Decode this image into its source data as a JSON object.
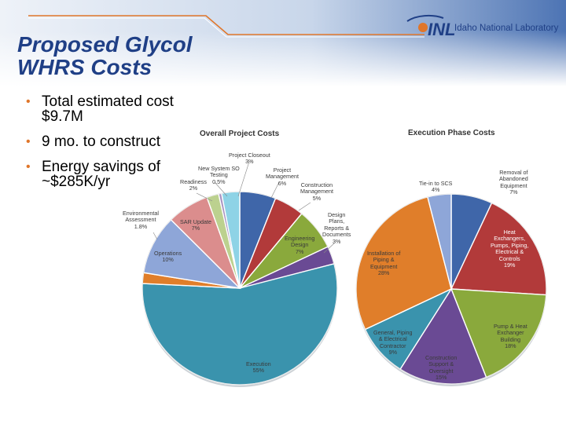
{
  "slide": {
    "title_line1": "Proposed Glycol",
    "title_line2": "WHRS Costs",
    "logo_text": "Idaho National Laboratory",
    "logo_mark": "INL",
    "bullets": [
      "Total estimated cost\n$9.7M",
      "9 mo. to construct",
      "Energy savings  of\n~$285K/yr"
    ]
  },
  "colors": {
    "title": "#1f3f86",
    "bullet": "#e0762a",
    "accent_line": "#e0762a"
  },
  "chart_data": [
    {
      "type": "pie",
      "title": "Overall Project Costs",
      "slices": [
        {
          "name": "Project\nManagement",
          "pct_label": "6%",
          "value": 6,
          "color": "#3f66a9"
        },
        {
          "name": "Construction\nManagement",
          "pct_label": "5%",
          "value": 5,
          "color": "#b23a3a"
        },
        {
          "name": "Engineering\nDesign",
          "pct_label": "7%",
          "value": 7,
          "color": "#8aa93c"
        },
        {
          "name": "Design\nPlans,\nReports &\nDocuments",
          "pct_label": "3%",
          "value": 3,
          "color": "#6a4a94"
        },
        {
          "name": "Execution",
          "pct_label": "55%",
          "value": 55,
          "color": "#3a93ad"
        },
        {
          "name": "Environmental\nAssessment",
          "pct_label": "1.8%",
          "value": 1.8,
          "color": "#e07e2a"
        },
        {
          "name": "Operations",
          "pct_label": "10%",
          "value": 10,
          "color": "#8ea6d8"
        },
        {
          "name": "SAR Update",
          "pct_label": "7%",
          "value": 7,
          "color": "#db8d8d"
        },
        {
          "name": "Readiness",
          "pct_label": "2%",
          "value": 2,
          "color": "#bcd18f"
        },
        {
          "name": "New System SO\nTesting",
          "pct_label": "0.5%",
          "value": 0.5,
          "color": "#a894c2"
        },
        {
          "name": "Project Closeout",
          "pct_label": "3%",
          "value": 3,
          "color": "#8ed3e6"
        }
      ]
    },
    {
      "type": "pie",
      "title": "Execution Phase Costs",
      "slices": [
        {
          "name": "Removal of\nAbandoned\nEquipment",
          "pct_label": "7%",
          "value": 7,
          "color": "#3f66a9"
        },
        {
          "name": "Heat\nExchangers,\nPumps, Piping,\nElectrical &\nControls",
          "pct_label": "19%",
          "value": 19,
          "color": "#b23a3a"
        },
        {
          "name": "Pump & Heat\nExchanger\nBuilding",
          "pct_label": "18%",
          "value": 18,
          "color": "#8aa93c"
        },
        {
          "name": "Construction\nSupport &\nOversight",
          "pct_label": "15%",
          "value": 15,
          "color": "#6a4a94"
        },
        {
          "name": "General, Piping\n& Electrical\nContractor",
          "pct_label": "9%",
          "value": 9,
          "color": "#3a93ad"
        },
        {
          "name": "Installation of\nPiping &\nEquipment",
          "pct_label": "28%",
          "value": 28,
          "color": "#e07e2a"
        },
        {
          "name": "Tie-in to SCS",
          "pct_label": "4%",
          "value": 4,
          "color": "#8ea6d8"
        }
      ]
    }
  ]
}
